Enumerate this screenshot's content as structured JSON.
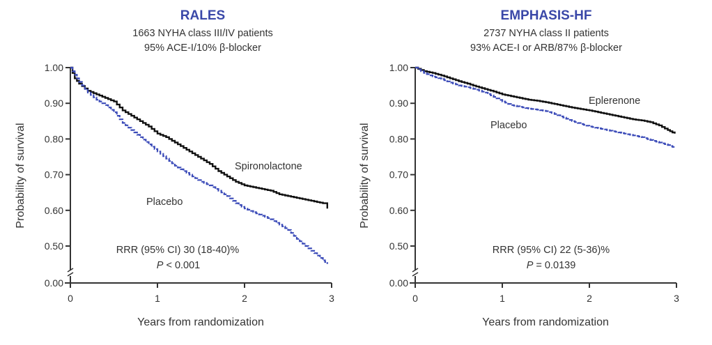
{
  "colors": {
    "title": "#3a48a8",
    "treatment": "#111111",
    "placebo": "#3a4ab8",
    "axis": "#333333"
  },
  "chart_data": [
    {
      "type": "line",
      "subtype": "kaplan-meier",
      "title": "RALES",
      "subtitle_lines": [
        "1663 NYHA class III/IV patients",
        "95% ACE-I/10% β-blocker"
      ],
      "xlabel": "Years from randomization",
      "ylabel": "Probability of survival",
      "xlim": [
        0,
        3
      ],
      "ylim_display": [
        0.0,
        1.0
      ],
      "y_axis_break": "between 0.00 and 0.50",
      "xticks": [
        "0",
        "1",
        "2",
        "3"
      ],
      "xtick_values": [
        0,
        1,
        2,
        3
      ],
      "yticks": [
        "1.00",
        "0.90",
        "0.80",
        "0.70",
        "0.60",
        "0.50",
        "0.00"
      ],
      "ytick_values": [
        1.0,
        0.9,
        0.8,
        0.7,
        0.6,
        0.5,
        0.0
      ],
      "grid": false,
      "series": [
        {
          "name": "Spironolactone",
          "style": "solid-black-step",
          "x": [
            0,
            0.05,
            0.1,
            0.2,
            0.3,
            0.4,
            0.5,
            0.6,
            0.7,
            0.8,
            0.9,
            1.0,
            1.1,
            1.2,
            1.3,
            1.4,
            1.5,
            1.6,
            1.7,
            1.8,
            1.9,
            2.0,
            2.1,
            2.2,
            2.3,
            2.4,
            2.5,
            2.6,
            2.7,
            2.8,
            2.9,
            2.95,
            2.95
          ],
          "y": [
            1.0,
            0.97,
            0.955,
            0.935,
            0.925,
            0.915,
            0.905,
            0.88,
            0.865,
            0.85,
            0.835,
            0.815,
            0.805,
            0.79,
            0.775,
            0.76,
            0.745,
            0.73,
            0.71,
            0.695,
            0.68,
            0.67,
            0.665,
            0.66,
            0.655,
            0.645,
            0.64,
            0.635,
            0.63,
            0.625,
            0.62,
            0.62,
            0.605
          ]
        },
        {
          "name": "Placebo",
          "style": "dashed-blue-step",
          "x": [
            0,
            0.05,
            0.1,
            0.2,
            0.3,
            0.4,
            0.5,
            0.6,
            0.7,
            0.8,
            0.9,
            1.0,
            1.1,
            1.2,
            1.3,
            1.4,
            1.5,
            1.6,
            1.7,
            1.8,
            1.9,
            2.0,
            2.1,
            2.2,
            2.3,
            2.4,
            2.5,
            2.6,
            2.7,
            2.8,
            2.9,
            2.95
          ],
          "y": [
            1.0,
            0.98,
            0.96,
            0.93,
            0.91,
            0.895,
            0.875,
            0.845,
            0.825,
            0.805,
            0.785,
            0.765,
            0.745,
            0.725,
            0.71,
            0.695,
            0.68,
            0.67,
            0.655,
            0.64,
            0.62,
            0.605,
            0.595,
            0.585,
            0.575,
            0.56,
            0.545,
            0.52,
            0.5,
            0.48,
            0.46,
            0.45
          ]
        }
      ],
      "annotations": {
        "treatment_label": "Spironolactone",
        "placebo_label": "Placebo",
        "rrr": "RRR (95% CI) 30 (18-40)%",
        "p_symbol": "P",
        "p_value": " < 0.001"
      }
    },
    {
      "type": "line",
      "subtype": "kaplan-meier",
      "title": "EMPHASIS-HF",
      "subtitle_lines": [
        "2737 NYHA class II patients",
        "93% ACE-I or ARB/87% β-blocker"
      ],
      "xlabel": "Years from randomization",
      "ylabel": "Probability of survival",
      "xlim": [
        0,
        3
      ],
      "ylim_display": [
        0.0,
        1.0
      ],
      "y_axis_break": "between 0.00 and 0.50",
      "xticks": [
        "0",
        "1",
        "2",
        "3"
      ],
      "xtick_values": [
        0,
        1,
        2,
        3
      ],
      "yticks": [
        "1.00",
        "0.90",
        "0.80",
        "0.70",
        "0.60",
        "0.50",
        "0.00"
      ],
      "ytick_values": [
        1.0,
        0.9,
        0.8,
        0.7,
        0.6,
        0.5,
        0.0
      ],
      "grid": false,
      "series": [
        {
          "name": "Eplerenone",
          "style": "solid-black-step",
          "x": [
            0,
            0.1,
            0.2,
            0.3,
            0.4,
            0.5,
            0.6,
            0.7,
            0.8,
            0.9,
            1.0,
            1.1,
            1.2,
            1.3,
            1.4,
            1.5,
            1.6,
            1.7,
            1.8,
            1.9,
            2.0,
            2.1,
            2.2,
            2.3,
            2.4,
            2.5,
            2.6,
            2.7,
            2.8,
            2.9,
            2.98
          ],
          "y": [
            1.0,
            0.99,
            0.985,
            0.978,
            0.97,
            0.962,
            0.955,
            0.947,
            0.94,
            0.933,
            0.925,
            0.92,
            0.915,
            0.91,
            0.907,
            0.903,
            0.898,
            0.893,
            0.888,
            0.884,
            0.88,
            0.875,
            0.87,
            0.865,
            0.86,
            0.855,
            0.852,
            0.847,
            0.838,
            0.825,
            0.815
          ]
        },
        {
          "name": "Placebo",
          "style": "dashed-blue-step",
          "x": [
            0,
            0.1,
            0.2,
            0.3,
            0.4,
            0.5,
            0.6,
            0.7,
            0.8,
            0.9,
            1.0,
            1.1,
            1.2,
            1.3,
            1.4,
            1.5,
            1.6,
            1.7,
            1.8,
            1.9,
            2.0,
            2.1,
            2.2,
            2.3,
            2.4,
            2.5,
            2.6,
            2.7,
            2.8,
            2.9,
            2.98
          ],
          "y": [
            1.0,
            0.985,
            0.975,
            0.968,
            0.958,
            0.95,
            0.945,
            0.938,
            0.93,
            0.918,
            0.905,
            0.895,
            0.89,
            0.885,
            0.882,
            0.878,
            0.87,
            0.86,
            0.85,
            0.842,
            0.835,
            0.83,
            0.825,
            0.82,
            0.815,
            0.81,
            0.805,
            0.797,
            0.79,
            0.783,
            0.775
          ]
        }
      ],
      "annotations": {
        "treatment_label": "Eplerenone",
        "placebo_label": "Placebo",
        "rrr": "RRR (95% CI) 22 (5-36)%",
        "p_symbol": "P",
        "p_value": " = 0.0139"
      }
    }
  ]
}
